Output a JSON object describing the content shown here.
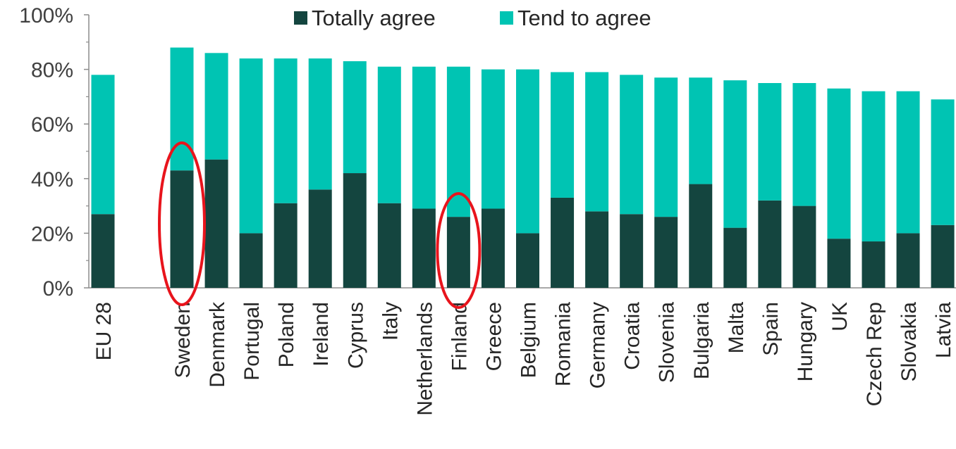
{
  "chart_data": {
    "type": "bar",
    "stacked": true,
    "title": "",
    "xlabel": "",
    "ylabel": "",
    "ylim": [
      0,
      100
    ],
    "y_ticks": [
      "0%",
      "20%",
      "40%",
      "60%",
      "80%",
      "100%"
    ],
    "y_tick_values": [
      0,
      20,
      40,
      60,
      80,
      100
    ],
    "grid": false,
    "legend_position": "top",
    "categories": [
      "EU 28",
      "Sweden",
      "Denmark",
      "Portugal",
      "Poland",
      "Ireland",
      "Cyprus",
      "Italy",
      "Netherlands",
      "Finland",
      "Greece",
      "Belgium",
      "Romania",
      "Germany",
      "Croatia",
      "Slovenia",
      "Bulgaria",
      "Malta",
      "Spain",
      "Hungary",
      "UK",
      "Czech Rep",
      "Slovakia",
      "Latvia"
    ],
    "series": [
      {
        "name": "Totally agree",
        "color": "#14453f",
        "values": [
          27,
          43,
          47,
          20,
          31,
          36,
          42,
          31,
          29,
          26,
          29,
          20,
          33,
          28,
          27,
          26,
          38,
          22,
          32,
          30,
          18,
          17,
          20,
          23
        ]
      },
      {
        "name": "Tend to agree",
        "color": "#00c4b3",
        "values": [
          51,
          45,
          39,
          64,
          53,
          48,
          41,
          50,
          52,
          55,
          51,
          60,
          46,
          51,
          51,
          51,
          39,
          54,
          43,
          45,
          55,
          55,
          52,
          46
        ]
      }
    ],
    "highlighted_categories": [
      "Sweden",
      "Finland"
    ],
    "highlight_color": "#e8141c"
  }
}
